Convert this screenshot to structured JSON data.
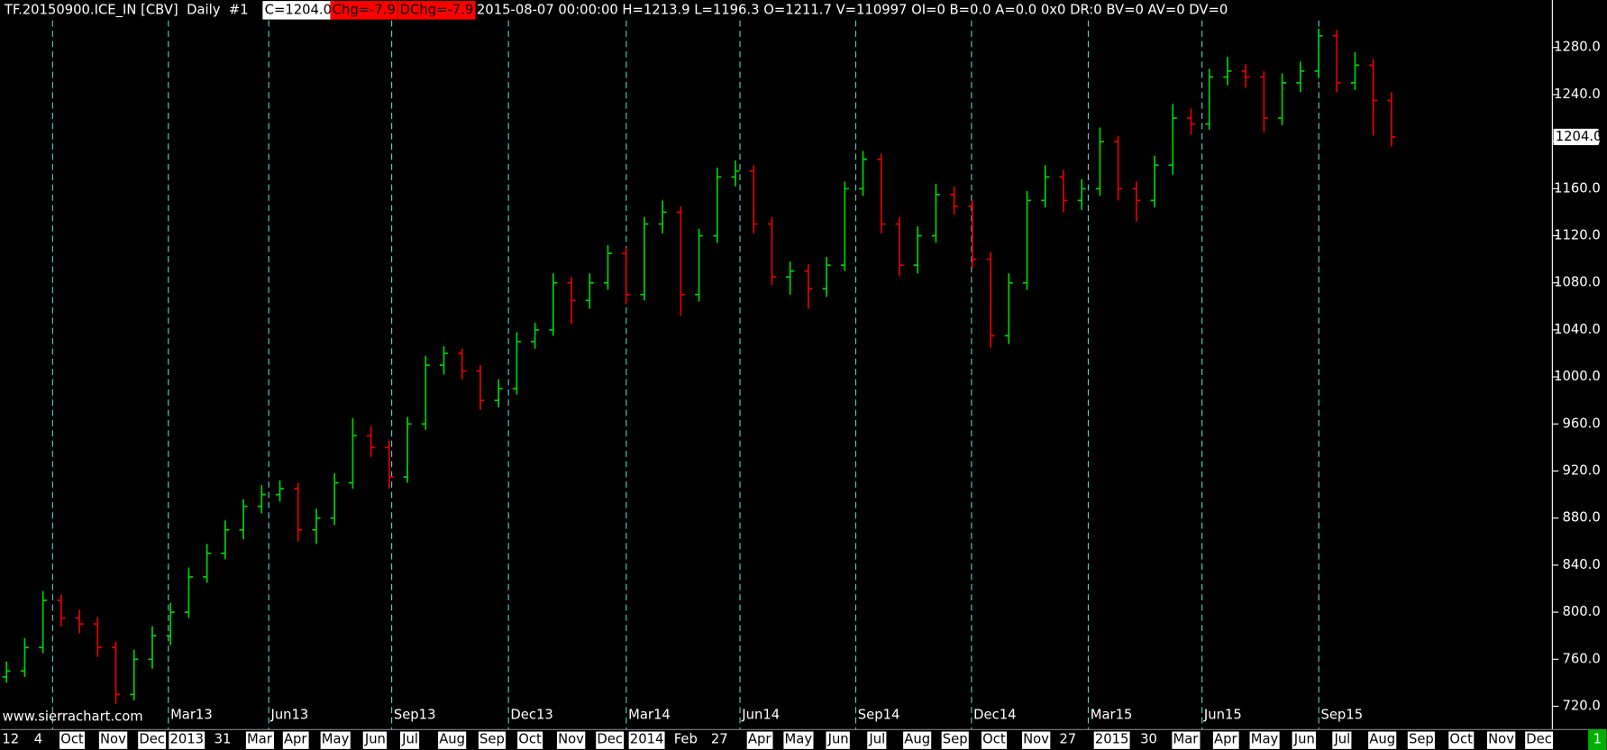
{
  "header": {
    "symbol": "TF.20150900.ICE_IN [CBV]  Daily  #1",
    "close": "C=1204.0",
    "change": "Chg=-7.9",
    "dchange": "DChg=-7.9",
    "details": "2015-08-07 00:00:00 H=1213.9 L=1196.3 O=1211.7 V=110997 OI=0 B=0.0 A=0.0 0x0 DR:0 BV=0 AV=0 DV=0"
  },
  "watermark": "www.sierrachart.com",
  "tab": "1",
  "chart_data": {
    "type": "ohlc",
    "up_color": "#00d000",
    "down_color": "#e00000",
    "background": "#000000",
    "ylim": [
      702,
      1303
    ],
    "yticks": [
      {
        "value": 720,
        "label": "720.0"
      },
      {
        "value": 760,
        "label": "760.0"
      },
      {
        "value": 800,
        "label": "800.0"
      },
      {
        "value": 840,
        "label": "840.0"
      },
      {
        "value": 880,
        "label": "880.0"
      },
      {
        "value": 920,
        "label": "920.0"
      },
      {
        "value": 960,
        "label": "960.0"
      },
      {
        "value": 1000,
        "label": "1000.0"
      },
      {
        "value": 1040,
        "label": "1040.0"
      },
      {
        "value": 1080,
        "label": "1080.0"
      },
      {
        "value": 1120,
        "label": "1120.0"
      },
      {
        "value": 1160,
        "label": "1160.0"
      },
      {
        "value": 1200,
        "label": "1200.0"
      },
      {
        "value": 1240,
        "label": "1240.0"
      },
      {
        "value": 1280,
        "label": "1280.0"
      }
    ],
    "last_price": {
      "value": 1204,
      "label": "1204.0"
    },
    "contracts": [
      "Mar13",
      "Jun13",
      "Sep13",
      "Dec13",
      "Mar14",
      "Jun14",
      "Sep14",
      "Dec14",
      "Mar15",
      "Jun15",
      "Sep15"
    ],
    "x_labels": [
      "12",
      "4",
      "Oct",
      "Nov",
      "Dec",
      "2013",
      "31",
      "Mar",
      "Apr",
      "May",
      "Jun",
      "Jul",
      "Aug",
      "Sep",
      "Oct",
      "Nov",
      "Dec",
      "2014",
      "Feb",
      "27",
      "Apr",
      "May",
      "Jun",
      "Jul",
      "Aug",
      "Sep",
      "Oct",
      "Nov",
      "27",
      "2015",
      "30",
      "Mar",
      "Apr",
      "May",
      "Jun",
      "Jul",
      "Aug",
      "Sep",
      "Oct",
      "Nov",
      "Dec"
    ],
    "open": [
      745,
      750,
      770,
      810,
      795,
      790,
      770,
      730,
      760,
      780,
      800,
      830,
      850,
      870,
      890,
      900,
      905,
      870,
      880,
      910,
      950,
      940,
      915,
      960,
      1010,
      1020,
      1005,
      980,
      990,
      1030,
      1040,
      1080,
      1065,
      1080,
      1105,
      1070,
      1130,
      1140,
      1070,
      1120,
      1170,
      1175,
      1130,
      1085,
      1090,
      1075,
      1095,
      1160,
      1185,
      1130,
      1095,
      1120,
      1155,
      1145,
      1100,
      1035,
      1080,
      1150,
      1170,
      1150,
      1160,
      1200,
      1160,
      1150,
      1180,
      1220,
      1215,
      1255,
      1260,
      1255,
      1220,
      1250,
      1260,
      1290,
      1250,
      1265,
      1235
    ],
    "high": [
      758,
      778,
      818,
      815,
      802,
      796,
      775,
      768,
      788,
      808,
      838,
      858,
      878,
      896,
      908,
      912,
      910,
      888,
      918,
      965,
      958,
      946,
      966,
      1018,
      1026,
      1024,
      1010,
      998,
      1038,
      1046,
      1088,
      1085,
      1088,
      1112,
      1110,
      1136,
      1150,
      1145,
      1126,
      1178,
      1184,
      1180,
      1136,
      1098,
      1096,
      1102,
      1166,
      1192,
      1190,
      1136,
      1128,
      1164,
      1162,
      1150,
      1106,
      1088,
      1158,
      1180,
      1176,
      1168,
      1212,
      1205,
      1166,
      1188,
      1232,
      1228,
      1262,
      1272,
      1266,
      1260,
      1258,
      1268,
      1296,
      1295,
      1276,
      1270,
      1242
    ],
    "low": [
      740,
      745,
      765,
      788,
      782,
      762,
      722,
      725,
      752,
      772,
      795,
      825,
      845,
      862,
      884,
      894,
      860,
      858,
      874,
      905,
      932,
      905,
      910,
      955,
      1002,
      998,
      972,
      974,
      985,
      1024,
      1035,
      1045,
      1058,
      1074,
      1062,
      1065,
      1122,
      1052,
      1064,
      1114,
      1162,
      1122,
      1078,
      1070,
      1058,
      1068,
      1090,
      1154,
      1122,
      1086,
      1088,
      1114,
      1138,
      1092,
      1025,
      1028,
      1074,
      1144,
      1140,
      1142,
      1154,
      1150,
      1132,
      1144,
      1172,
      1206,
      1210,
      1248,
      1246,
      1208,
      1214,
      1242,
      1254,
      1242,
      1244,
      1205,
      1196
    ],
    "close": [
      750,
      770,
      810,
      795,
      790,
      770,
      730,
      760,
      780,
      800,
      830,
      850,
      870,
      890,
      900,
      905,
      870,
      880,
      910,
      950,
      940,
      915,
      960,
      1010,
      1020,
      1005,
      980,
      990,
      1030,
      1040,
      1080,
      1065,
      1080,
      1105,
      1070,
      1130,
      1140,
      1070,
      1120,
      1170,
      1175,
      1130,
      1085,
      1090,
      1075,
      1095,
      1160,
      1185,
      1130,
      1095,
      1120,
      1155,
      1145,
      1100,
      1035,
      1080,
      1150,
      1170,
      1150,
      1160,
      1200,
      1160,
      1150,
      1180,
      1220,
      1215,
      1255,
      1260,
      1255,
      1220,
      1250,
      1260,
      1290,
      1250,
      1265,
      1235,
      1204
    ]
  }
}
